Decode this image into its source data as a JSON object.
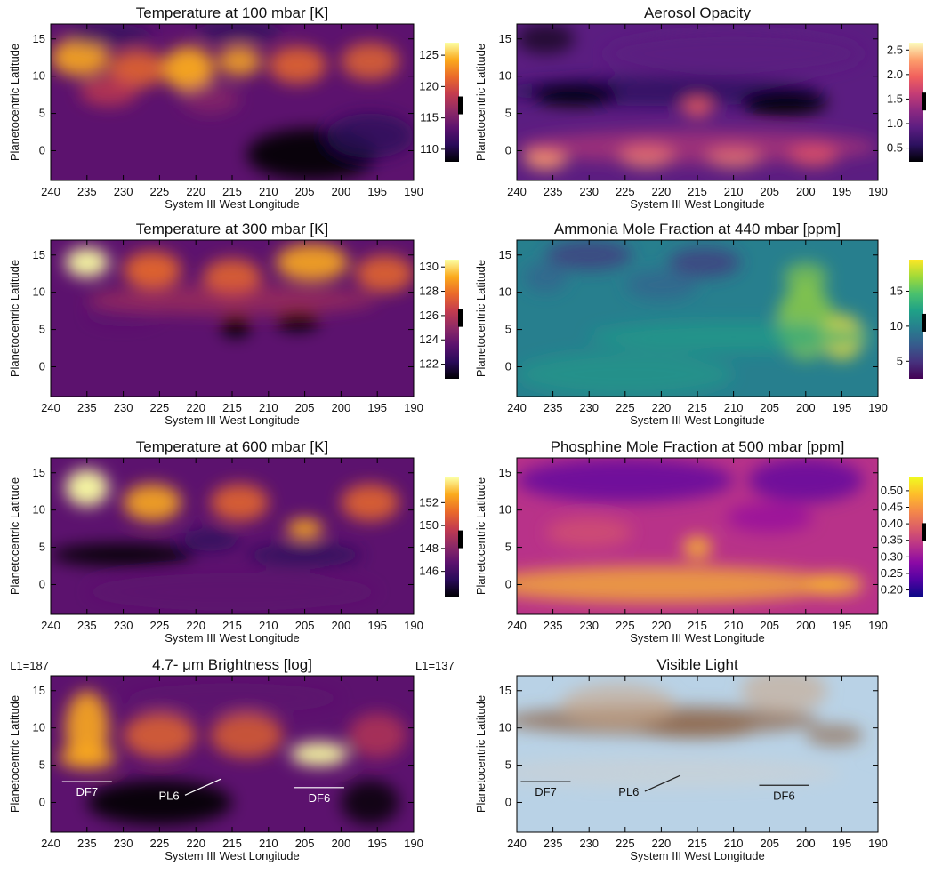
{
  "figure": {
    "xlabel": "System III West Longitude",
    "ylabel": "Planetocentric Latitude",
    "x_ticks": [
      240,
      235,
      230,
      225,
      220,
      215,
      210,
      205,
      200,
      195,
      190
    ],
    "y_ticks": [
      0,
      5,
      10,
      15
    ]
  },
  "chart_data": [
    {
      "type": "heatmap",
      "title": "Temperature at 100 mbar [K]",
      "xlabel": "System III West Longitude",
      "ylabel": "Planetocentric Latitude",
      "xlim": [
        240,
        190
      ],
      "ylim": [
        -4,
        17
      ],
      "x_ticks": [
        240,
        235,
        230,
        225,
        220,
        215,
        210,
        205,
        200,
        195,
        190
      ],
      "y_ticks": [
        0,
        5,
        10,
        15
      ],
      "colormap": "inferno",
      "colorbar_range": [
        108,
        127
      ],
      "colorbar_ticks": [
        110,
        115,
        120,
        125
      ],
      "colorbar_marker": 117
    },
    {
      "type": "heatmap",
      "title": "Aerosol Opacity",
      "xlabel": "System III West Longitude",
      "ylabel": "Planetocentric Latitude",
      "xlim": [
        240,
        190
      ],
      "ylim": [
        -4,
        17
      ],
      "x_ticks": [
        240,
        235,
        230,
        225,
        220,
        215,
        210,
        205,
        200,
        195,
        190
      ],
      "y_ticks": [
        0,
        5,
        10,
        15
      ],
      "colormap": "magma",
      "colorbar_range": [
        0.22,
        2.65
      ],
      "colorbar_ticks": [
        0.5,
        1.0,
        1.5,
        2.0,
        2.5
      ],
      "colorbar_ticklabels": [
        "0.5",
        "1.0",
        "1.5",
        "2.0",
        "2.5"
      ],
      "colorbar_marker": 1.45
    },
    {
      "type": "heatmap",
      "title": "Temperature at 300 mbar [K]",
      "xlabel": "System III West Longitude",
      "ylabel": "Planetocentric Latitude",
      "xlim": [
        240,
        190
      ],
      "ylim": [
        -4,
        17
      ],
      "x_ticks": [
        240,
        235,
        230,
        225,
        220,
        215,
        210,
        205,
        200,
        195,
        190
      ],
      "y_ticks": [
        0,
        5,
        10,
        15
      ],
      "colormap": "inferno",
      "colorbar_range": [
        120.8,
        130.6
      ],
      "colorbar_ticks": [
        122,
        124,
        126,
        128,
        130
      ],
      "colorbar_marker": 125.8
    },
    {
      "type": "heatmap",
      "title": "Ammonia Mole Fraction at 440 mbar [ppm]",
      "xlabel": "System III West Longitude",
      "ylabel": "Planetocentric Latitude",
      "xlim": [
        240,
        190
      ],
      "ylim": [
        -4,
        17
      ],
      "x_ticks": [
        240,
        235,
        230,
        225,
        220,
        215,
        210,
        205,
        200,
        195,
        190
      ],
      "y_ticks": [
        0,
        5,
        10,
        15
      ],
      "colormap": "viridis",
      "colorbar_range": [
        2.5,
        19.5
      ],
      "colorbar_ticks": [
        5,
        10,
        15
      ],
      "colorbar_marker": 10.5
    },
    {
      "type": "heatmap",
      "title": "Temperature at 600 mbar [K]",
      "xlabel": "System III West Longitude",
      "ylabel": "Planetocentric Latitude",
      "xlim": [
        240,
        190
      ],
      "ylim": [
        -4,
        17
      ],
      "x_ticks": [
        240,
        235,
        230,
        225,
        220,
        215,
        210,
        205,
        200,
        195,
        190
      ],
      "y_ticks": [
        0,
        5,
        10,
        15
      ],
      "colormap": "inferno",
      "colorbar_range": [
        143.8,
        154.2
      ],
      "colorbar_ticks": [
        146,
        148,
        150,
        152
      ],
      "colorbar_marker": 148.8
    },
    {
      "type": "heatmap",
      "title": "Phosphine Mole Fraction at 500 mbar [ppm]",
      "xlabel": "System III West Longitude",
      "ylabel": "Planetocentric Latitude",
      "xlim": [
        240,
        190
      ],
      "ylim": [
        -4,
        17
      ],
      "x_ticks": [
        240,
        235,
        230,
        225,
        220,
        215,
        210,
        205,
        200,
        195,
        190
      ],
      "y_ticks": [
        0,
        5,
        10,
        15
      ],
      "colormap": "plasma",
      "colorbar_range": [
        0.18,
        0.54
      ],
      "colorbar_ticks": [
        0.2,
        0.25,
        0.3,
        0.35,
        0.4,
        0.45,
        0.5
      ],
      "colorbar_ticklabels": [
        "0.20",
        "0.25",
        "0.30",
        "0.35",
        "0.40",
        "0.45",
        "0.50"
      ],
      "colorbar_marker": 0.375
    },
    {
      "type": "heatmap",
      "title": "4.7- μm Brightness [log]",
      "xlabel": "System III West Longitude",
      "ylabel": "Planetocentric Latitude",
      "xlim": [
        240,
        190
      ],
      "ylim": [
        -4,
        17
      ],
      "x_ticks": [
        240,
        235,
        230,
        225,
        220,
        215,
        210,
        205,
        200,
        195,
        190
      ],
      "y_ticks": [
        0,
        5,
        10,
        15
      ],
      "colormap": "inferno",
      "corner_labels": [
        "L1=187",
        "L1=137"
      ],
      "annotations": [
        {
          "text": "DF7",
          "lon": 235.0,
          "lat": 1.0
        },
        {
          "text": "PL6",
          "lon": 223.7,
          "lat": 0.5
        },
        {
          "text": "DF6",
          "lon": 203.0,
          "lat": 0.2
        }
      ]
    },
    {
      "type": "heatmap",
      "title": "Visible Light",
      "xlabel": "System III West Longitude",
      "ylabel": "Planetocentric Latitude",
      "xlim": [
        240,
        190
      ],
      "ylim": [
        -4,
        17
      ],
      "x_ticks": [
        240,
        235,
        230,
        225,
        220,
        215,
        210,
        205,
        200,
        195,
        190
      ],
      "y_ticks": [
        0,
        5,
        10,
        15
      ],
      "colormap": "visible",
      "annotations": [
        {
          "text": "DF7",
          "lon": 236.0,
          "lat": 1.0
        },
        {
          "text": "PL6",
          "lon": 224.5,
          "lat": 1.0
        },
        {
          "text": "DF6",
          "lon": 203.0,
          "lat": 0.5
        }
      ]
    }
  ]
}
